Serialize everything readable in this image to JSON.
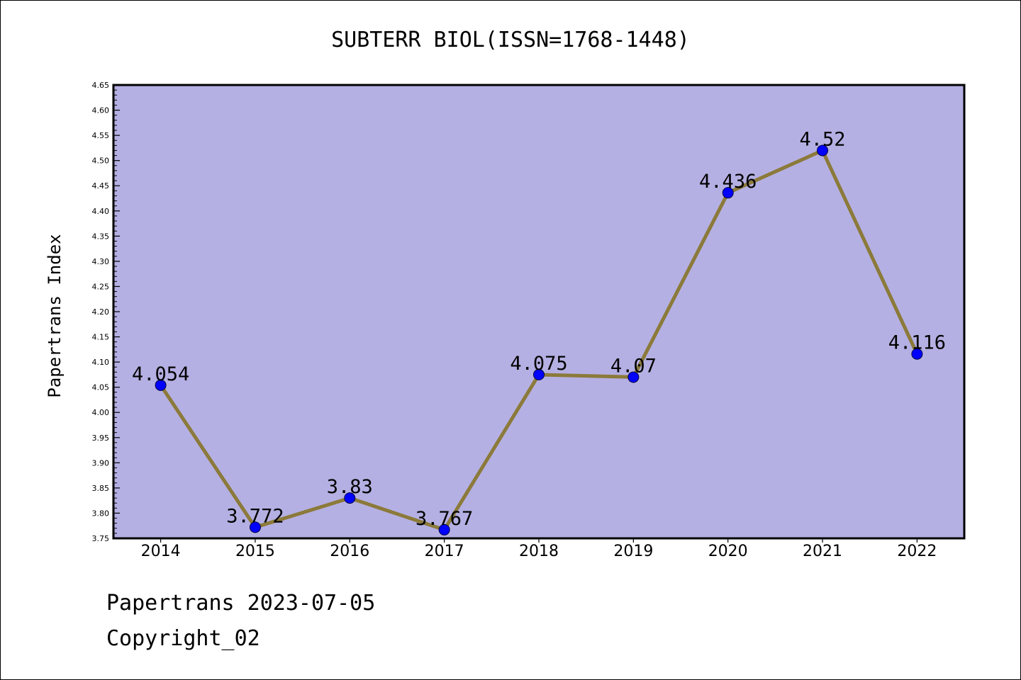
{
  "chart_data": {
    "type": "line",
    "title": "SUBTERR BIOL(ISSN=1768-1448)",
    "xlabel": "",
    "ylabel": "Papertrans Index",
    "categories": [
      "2014",
      "2015",
      "2016",
      "2017",
      "2018",
      "2019",
      "2020",
      "2021",
      "2022"
    ],
    "values": [
      4.054,
      3.772,
      3.83,
      3.767,
      4.075,
      4.07,
      4.436,
      4.52,
      4.116
    ],
    "value_labels": [
      "4.054",
      "3.772",
      "3.83",
      "3.767",
      "4.075",
      "4.07",
      "4.436",
      "4.52",
      "4.116"
    ],
    "ylim": [
      3.75,
      4.65
    ],
    "yticks": [
      "3.75",
      "3.80",
      "3.85",
      "3.90",
      "3.95",
      "4.00",
      "4.05",
      "4.10",
      "4.15",
      "4.20",
      "4.25",
      "4.30",
      "4.35",
      "4.40",
      "4.45",
      "4.50",
      "4.55",
      "4.60",
      "4.65"
    ],
    "grid": false,
    "legend": "none",
    "colors": {
      "plot_background": "#b5b0e3",
      "line": "#8b7a3a",
      "marker": "#0000ff",
      "axis": "#000000"
    }
  },
  "footer": {
    "line1": "Papertrans 2023-07-05",
    "line2": "Copyright_02"
  }
}
